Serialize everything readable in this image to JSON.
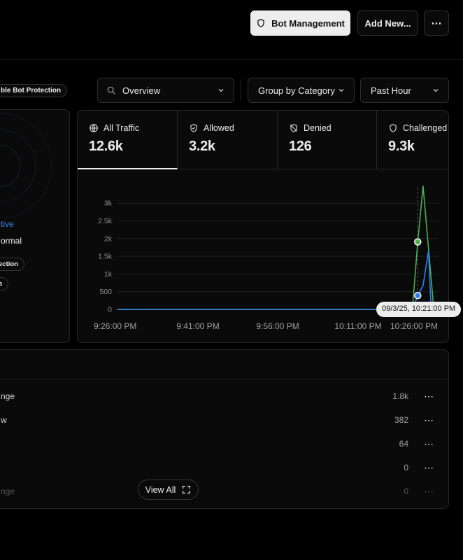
{
  "header": {
    "bot_management_label": "Bot Management",
    "add_new_label": "Add New...",
    "more_label": "⋯"
  },
  "left_panel": {
    "bot_protection_badge": "ble Bot Protection",
    "status_text": "tive",
    "status_desc": "ormal",
    "protection_pill": "ection",
    "extra_pill": "s"
  },
  "filters": {
    "view_select": "Overview",
    "group_select": "Group by Category",
    "time_select": "Past Hour"
  },
  "tabs": [
    {
      "label": "All Traffic",
      "value": "12.6k",
      "icon": "globe-icon"
    },
    {
      "label": "Allowed",
      "value": "3.2k",
      "icon": "shield-check-icon"
    },
    {
      "label": "Denied",
      "value": "126",
      "icon": "shield-off-icon"
    },
    {
      "label": "Challenged",
      "value": "9.3k",
      "icon": "shield-icon"
    }
  ],
  "chart_data": {
    "type": "line",
    "x_labels": [
      "9:26:00 PM",
      "9:41:00 PM",
      "9:56:00 PM",
      "10:11:00 PM",
      "10:26:00 PM"
    ],
    "y_ticks": [
      "0",
      "500",
      "1k",
      "1.5k",
      "2k",
      "2.5k",
      "3k"
    ],
    "ylim": [
      0,
      3300
    ],
    "x_range_minutes": [
      0,
      60
    ],
    "series": [
      {
        "color": "#4caf50",
        "points": [
          [
            0,
            0
          ],
          [
            10,
            0
          ],
          [
            20,
            0
          ],
          [
            30,
            0
          ],
          [
            40,
            0
          ],
          [
            50,
            0
          ],
          [
            55,
            0
          ],
          [
            56,
            1850
          ],
          [
            57,
            3380
          ],
          [
            59,
            0
          ]
        ]
      },
      {
        "color": "#2f7ff0",
        "points": [
          [
            0,
            0
          ],
          [
            50,
            0
          ],
          [
            55,
            0
          ],
          [
            56,
            380
          ],
          [
            57,
            650
          ],
          [
            58,
            1600
          ],
          [
            58.5,
            0
          ]
        ]
      }
    ],
    "tooltip_label": "09/3/25, 10:21:00 PM",
    "hover_x": 56
  },
  "list": {
    "rows": [
      {
        "name": "nge",
        "value": "1.8k"
      },
      {
        "name": "w",
        "value": "382"
      },
      {
        "name": "",
        "value": "64"
      },
      {
        "name": "",
        "value": "0"
      },
      {
        "name": "nge",
        "value": "0"
      }
    ],
    "row_more": "⋯",
    "view_all_label": "View All"
  }
}
